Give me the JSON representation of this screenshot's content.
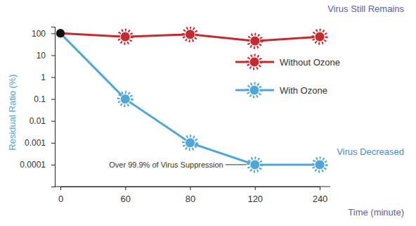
{
  "chart_data": {
    "type": "line",
    "x_label": "Time (minute)",
    "y_label": "Residual Ratio (%)",
    "categories": [
      "0",
      "60",
      "80",
      "120",
      "240"
    ],
    "series": [
      {
        "name": "Without Ozone",
        "color": "#c62a2f",
        "marker": "virus",
        "values": [
          100,
          70,
          90,
          45,
          70
        ]
      },
      {
        "name": "With Ozone",
        "color": "#4fa6da",
        "marker": "virus",
        "values": [
          100,
          0.1,
          0.001,
          0.0001,
          0.0001
        ]
      }
    ],
    "log": "y",
    "ylim": [
      1e-05,
      200
    ],
    "yticks": [
      100,
      10,
      1,
      0.1,
      0.01,
      0.001,
      0.0001
    ],
    "grid": false,
    "legend": "right",
    "annotations": [
      "Virus Still Remains",
      "Virus Decreased",
      "Over 99.9% of Virus Suppression"
    ]
  }
}
